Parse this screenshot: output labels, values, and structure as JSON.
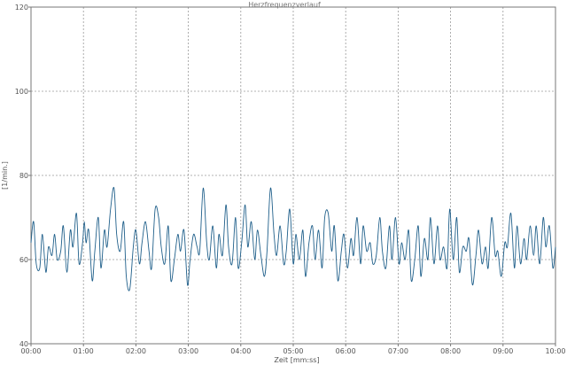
{
  "chart_data": {
    "type": "line",
    "title": "Herzfrequenzverlauf",
    "xlabel": "Zeit [mm:ss]",
    "ylabel": "[1/min.]",
    "xlim": [
      0,
      600
    ],
    "ylim": [
      40,
      120
    ],
    "x_ticks": [
      "00:00",
      "01:00",
      "02:00",
      "03:00",
      "04:00",
      "05:00",
      "06:00",
      "07:00",
      "08:00",
      "09:00",
      "10:00"
    ],
    "y_ticks": [
      "40",
      "60",
      "80",
      "100",
      "120"
    ],
    "grid": true,
    "line_color": "#1f5f8a",
    "series": [
      {
        "x": [
          0,
          3,
          6,
          10,
          13,
          17,
          20,
          24,
          27,
          30,
          34,
          37,
          41,
          45,
          48,
          52,
          55,
          59,
          61,
          63,
          66,
          70,
          73,
          77,
          80,
          84,
          87,
          91,
          95,
          98,
          102,
          106,
          109,
          113,
          117,
          120,
          124,
          127,
          131,
          135,
          138,
          142,
          146,
          149,
          153,
          157,
          160,
          164,
          168,
          171,
          175,
          179,
          182,
          186,
          190,
          193,
          197,
          201,
          204,
          208,
          212,
          215,
          219,
          223,
          226,
          230,
          234,
          237,
          241,
          245,
          248,
          252,
          256,
          259,
          263,
          267,
          270,
          274,
          278,
          281,
          285,
          289,
          292,
          296,
          300,
          303,
          307,
          311,
          314,
          318,
          322,
          325,
          329,
          333,
          336,
          340,
          344,
          347,
          351,
          355,
          358,
          362,
          366,
          369,
          373,
          377,
          380,
          384,
          388,
          391,
          395,
          399,
          402,
          406,
          410,
          413,
          417,
          421,
          424,
          428,
          432,
          435,
          439,
          443,
          446,
          450,
          454,
          457,
          461,
          465,
          468,
          472,
          476,
          479,
          483,
          487,
          490,
          494,
          498,
          501,
          505,
          509,
          512,
          516,
          520,
          523,
          527,
          531,
          534,
          538,
          542,
          545,
          549,
          553,
          556,
          560,
          564,
          567,
          571,
          575,
          578,
          582,
          586,
          589,
          593,
          597,
          600
        ],
        "y": [
          64,
          69,
          59,
          58,
          66,
          57,
          63,
          61,
          66,
          60,
          62,
          68,
          57,
          67,
          63,
          71,
          59,
          64,
          69,
          64,
          67,
          55,
          62,
          70,
          58,
          67,
          63,
          72,
          77,
          66,
          62,
          69,
          56,
          53,
          63,
          67,
          59,
          64,
          69,
          62,
          58,
          72,
          70,
          63,
          59,
          68,
          55,
          60,
          66,
          62,
          67,
          54,
          60,
          66,
          63,
          62,
          77,
          64,
          60,
          68,
          58,
          66,
          61,
          73,
          63,
          59,
          70,
          58,
          64,
          73,
          63,
          69,
          60,
          67,
          61,
          56,
          62,
          77,
          66,
          61,
          68,
          59,
          62,
          72,
          59,
          66,
          60,
          67,
          56,
          64,
          68,
          60,
          67,
          58,
          70,
          71,
          62,
          68,
          55,
          62,
          66,
          58,
          65,
          61,
          70,
          59,
          68,
          62,
          64,
          59,
          61,
          70,
          62,
          58,
          68,
          60,
          70,
          59,
          64,
          60,
          67,
          55,
          60,
          68,
          56,
          65,
          60,
          70,
          59,
          68,
          60,
          63,
          58,
          72,
          60,
          70,
          57,
          63,
          62,
          65,
          54,
          61,
          67,
          59,
          63,
          58,
          70,
          61,
          62,
          56,
          64,
          63,
          71,
          58,
          68,
          59,
          65,
          60,
          68,
          61,
          68,
          59,
          70,
          63,
          68,
          58,
          63
        ]
      }
    ]
  }
}
